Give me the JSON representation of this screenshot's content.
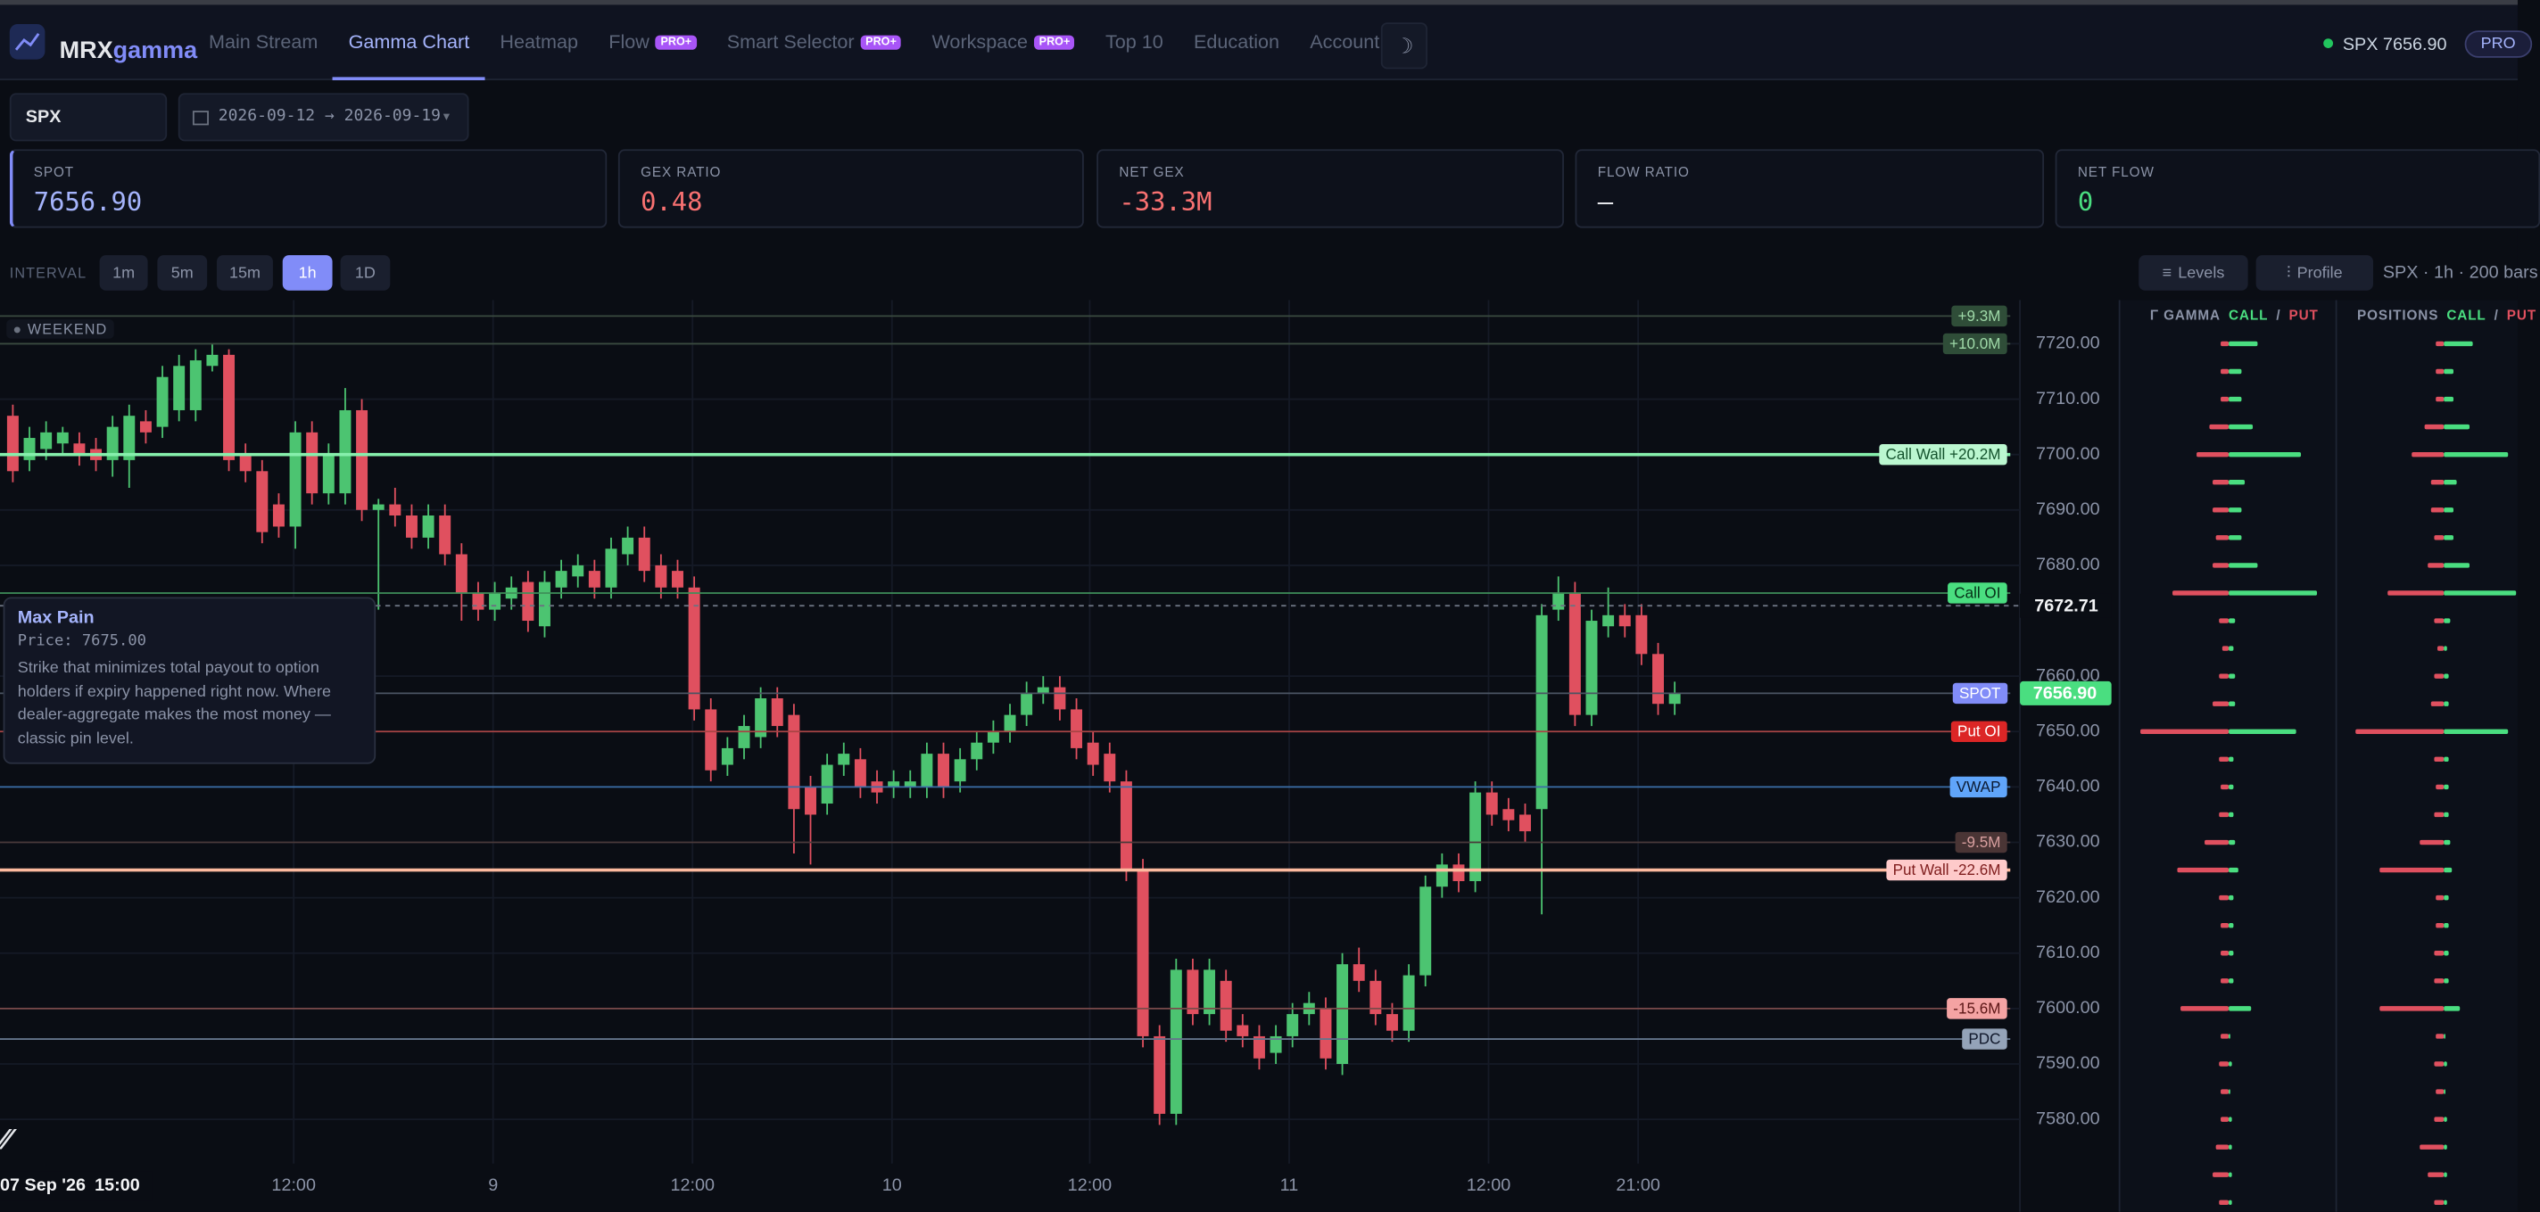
{
  "nav": {
    "brand_prefix": "MRX",
    "brand_suffix": "gamma",
    "items": [
      {
        "label": "Main Stream"
      },
      {
        "label": "Gamma Chart"
      },
      {
        "label": "Heatmap"
      },
      {
        "label": "Flow",
        "badge": "PRO+"
      },
      {
        "label": "Smart Selector",
        "badge": "PRO+"
      },
      {
        "label": "Workspace",
        "badge": "PRO+"
      },
      {
        "label": "Top 10"
      },
      {
        "label": "Education"
      },
      {
        "label": "Account"
      }
    ],
    "active": 1,
    "theme_icon": "☽",
    "ticker": "SPX 7656.90",
    "plan": "PRO"
  },
  "controls": {
    "symbol": "SPX",
    "date_range": "2026-09-12 → 2026-09-19"
  },
  "stats": [
    {
      "label": "SPOT",
      "value": "7656.90",
      "color": "#a5b4fc"
    },
    {
      "label": "GEX RATIO",
      "value": "0.48",
      "color": "#f87171"
    },
    {
      "label": "NET GEX",
      "value": "-33.3M",
      "color": "#f87171"
    },
    {
      "label": "FLOW RATIO",
      "value": "—",
      "color": "#e5e7eb"
    },
    {
      "label": "NET FLOW",
      "value": "0",
      "color": "#4ade80"
    }
  ],
  "interval": {
    "label": "INTERVAL",
    "options": [
      "1m",
      "5m",
      "15m",
      "1h",
      "1D"
    ],
    "active": 3,
    "levels_button": "Levels",
    "profile_button": "Profile",
    "info": "SPX · 1h · 200 bars"
  },
  "session_badge": "WEEKEND",
  "tooltip": {
    "title": "Max Pain",
    "price": "Price: 7675.00",
    "text": "Strike that minimizes total payout to option holders if expiry happened right now. Where dealer-aggregate makes the most money — classic pin level."
  },
  "chart_data": {
    "type": "candlestick",
    "up_color": "#4cc471",
    "down_color": "#e0505f",
    "grid": true,
    "ylim": [
      7572,
      7727
    ],
    "yticks": [
      {
        "value": 7580,
        "label": "7580.00"
      },
      {
        "value": 7590,
        "label": "7590.00"
      },
      {
        "value": 7600,
        "label": "7600.00"
      },
      {
        "value": 7610,
        "label": "7610.00"
      },
      {
        "value": 7620,
        "label": "7620.00"
      },
      {
        "value": 7630,
        "label": "7630.00"
      },
      {
        "value": 7640,
        "label": "7640.00"
      },
      {
        "value": 7650,
        "label": "7650.00"
      },
      {
        "value": 7660,
        "label": "7660.00"
      },
      {
        "value": 7680,
        "label": "7680.00"
      },
      {
        "value": 7690,
        "label": "7690.00"
      },
      {
        "value": 7700,
        "label": "7700.00"
      },
      {
        "value": 7710,
        "label": "7710.00"
      },
      {
        "value": 7720,
        "label": "7720.00"
      }
    ],
    "xticks": [
      {
        "value": 16.9,
        "label": "12:00"
      },
      {
        "value": 28.9,
        "label": "9"
      },
      {
        "value": 40.9,
        "label": "12:00"
      },
      {
        "value": 52.9,
        "label": "10"
      },
      {
        "value": 64.8,
        "label": "12:00"
      },
      {
        "value": 76.8,
        "label": "11"
      },
      {
        "value": 88.8,
        "label": "12:00"
      },
      {
        "value": 97.8,
        "label": "21:00"
      }
    ],
    "candles": [
      [
        7707,
        7709,
        7695,
        7697
      ],
      [
        7699,
        7705,
        7697,
        7703
      ],
      [
        7701,
        7706,
        7699,
        7704
      ],
      [
        7702,
        7705,
        7700,
        7704
      ],
      [
        7702,
        7704,
        7698,
        7700
      ],
      [
        7701,
        7703,
        7697,
        7699
      ],
      [
        7699,
        7707,
        7696,
        7705
      ],
      [
        7699,
        7709,
        7694,
        7707
      ],
      [
        7706,
        7708,
        7702,
        7704
      ],
      [
        7705,
        7716,
        7703,
        7714
      ],
      [
        7708,
        7718,
        7706,
        7716
      ],
      [
        7708,
        7719,
        7706,
        7717
      ],
      [
        7716,
        7720,
        7715,
        7718
      ],
      [
        7718,
        7719,
        7697,
        7699
      ],
      [
        7700,
        7702,
        7695,
        7697
      ],
      [
        7697,
        7699,
        7684,
        7686
      ],
      [
        7691,
        7693,
        7685,
        7687
      ],
      [
        7687,
        7706,
        7683,
        7704
      ],
      [
        7704,
        7706,
        7691,
        7693
      ],
      [
        7693,
        7702,
        7691,
        7700
      ],
      [
        7693,
        7712,
        7691,
        7708
      ],
      [
        7708,
        7710,
        7688,
        7690
      ],
      [
        7690,
        7692,
        7672,
        7691
      ],
      [
        7691,
        7694,
        7687,
        7689
      ],
      [
        7689,
        7691,
        7683,
        7685
      ],
      [
        7685,
        7691,
        7683,
        7689
      ],
      [
        7689,
        7691,
        7680,
        7682
      ],
      [
        7682,
        7684,
        7670,
        7675
      ],
      [
        7675,
        7677,
        7670,
        7672
      ],
      [
        7672,
        7677,
        7670,
        7675
      ],
      [
        7674,
        7678,
        7672,
        7676
      ],
      [
        7677,
        7679,
        7668,
        7670
      ],
      [
        7669,
        7679,
        7667,
        7677
      ],
      [
        7676,
        7681,
        7674,
        7679
      ],
      [
        7678,
        7682,
        7676,
        7680
      ],
      [
        7679,
        7681,
        7674,
        7676
      ],
      [
        7676,
        7685,
        7674,
        7683
      ],
      [
        7682,
        7687,
        7680,
        7685
      ],
      [
        7685,
        7687,
        7677,
        7679
      ],
      [
        7680,
        7682,
        7674,
        7676
      ],
      [
        7679,
        7681,
        7674,
        7676
      ],
      [
        7676,
        7678,
        7652,
        7654
      ],
      [
        7654,
        7656,
        7641,
        7643
      ],
      [
        7644,
        7649,
        7642,
        7647
      ],
      [
        7647,
        7653,
        7645,
        7651
      ],
      [
        7649,
        7658,
        7647,
        7656
      ],
      [
        7656,
        7658,
        7649,
        7651
      ],
      [
        7653,
        7655,
        7628,
        7636
      ],
      [
        7640,
        7642,
        7626,
        7635
      ],
      [
        7637,
        7646,
        7635,
        7644
      ],
      [
        7644,
        7648,
        7642,
        7646
      ],
      [
        7645,
        7647,
        7638,
        7640
      ],
      [
        7641,
        7643,
        7637,
        7639
      ],
      [
        7640,
        7643,
        7638,
        7641
      ],
      [
        7640,
        7643,
        7638,
        7641
      ],
      [
        7640,
        7648,
        7638,
        7646
      ],
      [
        7646,
        7648,
        7638,
        7640
      ],
      [
        7641,
        7647,
        7639,
        7645
      ],
      [
        7645,
        7650,
        7643,
        7648
      ],
      [
        7648,
        7652,
        7646,
        7650
      ],
      [
        7650,
        7655,
        7648,
        7653
      ],
      [
        7653,
        7659,
        7651,
        7657
      ],
      [
        7657,
        7660,
        7655,
        7658
      ],
      [
        7658,
        7660,
        7652,
        7654
      ],
      [
        7654,
        7656,
        7645,
        7647
      ],
      [
        7648,
        7650,
        7642,
        7644
      ],
      [
        7646,
        7648,
        7639,
        7641
      ],
      [
        7641,
        7643,
        7623,
        7625
      ],
      [
        7625,
        7627,
        7593,
        7595
      ],
      [
        7595,
        7597,
        7579,
        7581
      ],
      [
        7581,
        7609,
        7579,
        7607
      ],
      [
        7607,
        7609,
        7597,
        7599
      ],
      [
        7599,
        7609,
        7597,
        7607
      ],
      [
        7605,
        7607,
        7594,
        7596
      ],
      [
        7597,
        7599,
        7593,
        7595
      ],
      [
        7595,
        7597,
        7589,
        7591
      ],
      [
        7592,
        7597,
        7590,
        7595
      ],
      [
        7595,
        7601,
        7593,
        7599
      ],
      [
        7599,
        7603,
        7597,
        7601
      ],
      [
        7600,
        7602,
        7589,
        7591
      ],
      [
        7590,
        7610,
        7588,
        7608
      ],
      [
        7608,
        7611,
        7603,
        7605
      ],
      [
        7605,
        7607,
        7597,
        7599
      ],
      [
        7599,
        7601,
        7594,
        7596
      ],
      [
        7596,
        7608,
        7594,
        7606
      ],
      [
        7606,
        7624,
        7604,
        7622
      ],
      [
        7622,
        7628,
        7620,
        7626
      ],
      [
        7626,
        7628,
        7621,
        7623
      ],
      [
        7623,
        7641,
        7621,
        7639
      ],
      [
        7639,
        7641,
        7633,
        7635
      ],
      [
        7636,
        7638,
        7632,
        7634
      ],
      [
        7635,
        7637,
        7630,
        7632
      ],
      [
        7636,
        7673,
        7617,
        7671
      ],
      [
        7672,
        7678,
        7670,
        7675
      ],
      [
        7675,
        7677,
        7651,
        7653
      ],
      [
        7653,
        7672,
        7651,
        7670
      ],
      [
        7669,
        7676,
        7667,
        7671
      ],
      [
        7671,
        7673,
        7667,
        7669
      ],
      [
        7671,
        7673,
        7662,
        7664
      ],
      [
        7664,
        7666,
        7653,
        7655
      ],
      [
        7655,
        7659,
        7653,
        7657
      ]
    ],
    "levels": [
      {
        "label": "+9.3M",
        "value": 7725,
        "color": "#3a4a3f",
        "bg": "#2f4d38",
        "text_color": "#9fd9a8",
        "width": 1
      },
      {
        "label": "+10.0M",
        "value": 7720,
        "color": "#3a4a3f",
        "bg": "#2f4d38",
        "text_color": "#9fd9a8",
        "width": 1
      },
      {
        "label": "Call Wall +20.2M",
        "value": 7700,
        "color": "#86efac",
        "bg": "#bbf7d0",
        "text_color": "#14532d",
        "width": 2
      },
      {
        "label": "Call OI",
        "value": 7675,
        "color": "#3f8f5a",
        "bg": "#4ade80",
        "text_color": "#052e16",
        "width": 1
      },
      {
        "label": "SPOT",
        "value": 7656.9,
        "value_label": "7656.90",
        "color": "#4b5563",
        "bg": "#818cf8",
        "text_color": "#ffffff",
        "width": 1,
        "axis_bg": "#4ade80"
      },
      {
        "label": "Put OI",
        "value": 7650,
        "color": "#a84444",
        "bg": "#dc2626",
        "text_color": "#ffffff",
        "width": 1
      },
      {
        "label": "VWAP",
        "value": 7640,
        "color": "#3b6ea8",
        "bg": "#60a5fa",
        "text_color": "#0b1a33",
        "width": 1
      },
      {
        "label": "-9.5M",
        "value": 7630,
        "color": "#4a3a3a",
        "bg": "#4a3535",
        "text_color": "#d9a0a0",
        "width": 1
      },
      {
        "label": "Put Wall -22.6M",
        "value": 7625,
        "color": "#fdba9f",
        "bg": "#fecaca",
        "text_color": "#7f1d1d",
        "width": 2
      },
      {
        "label": "-15.6M",
        "value": 7600,
        "color": "#7a4a4a",
        "bg": "#f4a3a3",
        "text_color": "#5b1515",
        "width": 1
      },
      {
        "label": "PDC",
        "value": 7594.5,
        "color": "#64748b",
        "bg": "#94a3b8",
        "text_color": "#0f172a",
        "width": 1
      }
    ],
    "crosshair": {
      "price": 7672.71,
      "date_label": "07 Sep '26",
      "time_label": "15:00"
    },
    "profile": {
      "gamma_title": "Γ GAMMA",
      "positions_title": "POSITIONS",
      "call": "CALL",
      "separator": "/",
      "put": "PUT",
      "call_color": "#4ade80",
      "put_color": "#e0505f",
      "strikes": [
        7720,
        7715,
        7710,
        7705,
        7700,
        7695,
        7690,
        7685,
        7680,
        7675,
        7670,
        7665,
        7660,
        7655,
        7650,
        7645,
        7640,
        7635,
        7630,
        7625,
        7620,
        7615,
        7610,
        7605,
        7600,
        7595,
        7590,
        7585,
        7580,
        7575,
        7570,
        7565
      ],
      "gamma_put": [
        5,
        5,
        5,
        12,
        20,
        10,
        10,
        8,
        10,
        35,
        6,
        4,
        6,
        10,
        55,
        6,
        5,
        6,
        15,
        32,
        6,
        5,
        5,
        5,
        30,
        5,
        6,
        5,
        5,
        8,
        10,
        6
      ],
      "gamma_call": [
        18,
        8,
        8,
        15,
        45,
        10,
        8,
        8,
        18,
        55,
        4,
        3,
        4,
        4,
        42,
        3,
        3,
        3,
        4,
        6,
        3,
        3,
        3,
        3,
        14,
        1,
        2,
        1,
        2,
        2,
        2,
        2
      ],
      "positions_put": [
        5,
        5,
        5,
        12,
        20,
        8,
        8,
        6,
        10,
        35,
        6,
        4,
        6,
        8,
        55,
        6,
        5,
        6,
        15,
        40,
        5,
        5,
        6,
        6,
        40,
        5,
        6,
        5,
        6,
        15,
        10,
        6
      ],
      "positions_call": [
        18,
        6,
        6,
        16,
        40,
        8,
        6,
        6,
        16,
        45,
        4,
        2,
        3,
        3,
        40,
        3,
        3,
        3,
        4,
        5,
        3,
        3,
        3,
        3,
        10,
        1,
        2,
        1,
        2,
        2,
        2,
        2
      ]
    }
  }
}
